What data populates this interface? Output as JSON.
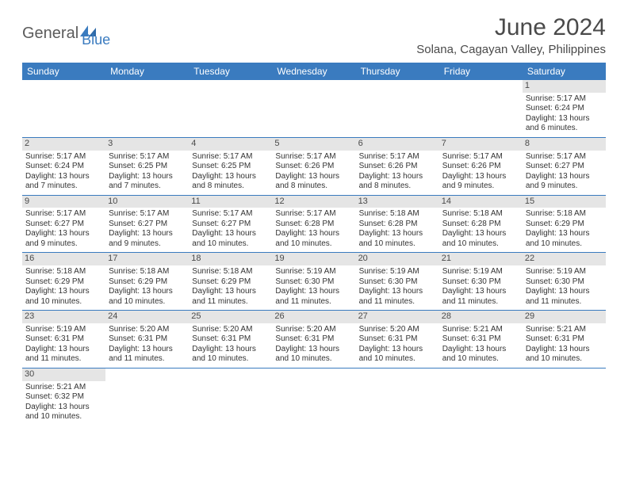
{
  "logo": {
    "general": "General",
    "blue": "Blue"
  },
  "title": "June 2024",
  "location": "Solana, Cagayan Valley, Philippines",
  "dow": [
    "Sunday",
    "Monday",
    "Tuesday",
    "Wednesday",
    "Thursday",
    "Friday",
    "Saturday"
  ],
  "colors": {
    "header_bg": "#3a7bbf",
    "daynum_bg": "#e5e5e5",
    "text": "#4a4a4a",
    "border": "#3a7bbf"
  },
  "weeks": [
    [
      {
        "n": null
      },
      {
        "n": null
      },
      {
        "n": null
      },
      {
        "n": null
      },
      {
        "n": null
      },
      {
        "n": null
      },
      {
        "n": "1",
        "sr": "Sunrise: 5:17 AM",
        "ss": "Sunset: 6:24 PM",
        "d1": "Daylight: 13 hours",
        "d2": "and 6 minutes."
      }
    ],
    [
      {
        "n": "2",
        "sr": "Sunrise: 5:17 AM",
        "ss": "Sunset: 6:24 PM",
        "d1": "Daylight: 13 hours",
        "d2": "and 7 minutes."
      },
      {
        "n": "3",
        "sr": "Sunrise: 5:17 AM",
        "ss": "Sunset: 6:25 PM",
        "d1": "Daylight: 13 hours",
        "d2": "and 7 minutes."
      },
      {
        "n": "4",
        "sr": "Sunrise: 5:17 AM",
        "ss": "Sunset: 6:25 PM",
        "d1": "Daylight: 13 hours",
        "d2": "and 8 minutes."
      },
      {
        "n": "5",
        "sr": "Sunrise: 5:17 AM",
        "ss": "Sunset: 6:26 PM",
        "d1": "Daylight: 13 hours",
        "d2": "and 8 minutes."
      },
      {
        "n": "6",
        "sr": "Sunrise: 5:17 AM",
        "ss": "Sunset: 6:26 PM",
        "d1": "Daylight: 13 hours",
        "d2": "and 8 minutes."
      },
      {
        "n": "7",
        "sr": "Sunrise: 5:17 AM",
        "ss": "Sunset: 6:26 PM",
        "d1": "Daylight: 13 hours",
        "d2": "and 9 minutes."
      },
      {
        "n": "8",
        "sr": "Sunrise: 5:17 AM",
        "ss": "Sunset: 6:27 PM",
        "d1": "Daylight: 13 hours",
        "d2": "and 9 minutes."
      }
    ],
    [
      {
        "n": "9",
        "sr": "Sunrise: 5:17 AM",
        "ss": "Sunset: 6:27 PM",
        "d1": "Daylight: 13 hours",
        "d2": "and 9 minutes."
      },
      {
        "n": "10",
        "sr": "Sunrise: 5:17 AM",
        "ss": "Sunset: 6:27 PM",
        "d1": "Daylight: 13 hours",
        "d2": "and 9 minutes."
      },
      {
        "n": "11",
        "sr": "Sunrise: 5:17 AM",
        "ss": "Sunset: 6:27 PM",
        "d1": "Daylight: 13 hours",
        "d2": "and 10 minutes."
      },
      {
        "n": "12",
        "sr": "Sunrise: 5:17 AM",
        "ss": "Sunset: 6:28 PM",
        "d1": "Daylight: 13 hours",
        "d2": "and 10 minutes."
      },
      {
        "n": "13",
        "sr": "Sunrise: 5:18 AM",
        "ss": "Sunset: 6:28 PM",
        "d1": "Daylight: 13 hours",
        "d2": "and 10 minutes."
      },
      {
        "n": "14",
        "sr": "Sunrise: 5:18 AM",
        "ss": "Sunset: 6:28 PM",
        "d1": "Daylight: 13 hours",
        "d2": "and 10 minutes."
      },
      {
        "n": "15",
        "sr": "Sunrise: 5:18 AM",
        "ss": "Sunset: 6:29 PM",
        "d1": "Daylight: 13 hours",
        "d2": "and 10 minutes."
      }
    ],
    [
      {
        "n": "16",
        "sr": "Sunrise: 5:18 AM",
        "ss": "Sunset: 6:29 PM",
        "d1": "Daylight: 13 hours",
        "d2": "and 10 minutes."
      },
      {
        "n": "17",
        "sr": "Sunrise: 5:18 AM",
        "ss": "Sunset: 6:29 PM",
        "d1": "Daylight: 13 hours",
        "d2": "and 10 minutes."
      },
      {
        "n": "18",
        "sr": "Sunrise: 5:18 AM",
        "ss": "Sunset: 6:29 PM",
        "d1": "Daylight: 13 hours",
        "d2": "and 11 minutes."
      },
      {
        "n": "19",
        "sr": "Sunrise: 5:19 AM",
        "ss": "Sunset: 6:30 PM",
        "d1": "Daylight: 13 hours",
        "d2": "and 11 minutes."
      },
      {
        "n": "20",
        "sr": "Sunrise: 5:19 AM",
        "ss": "Sunset: 6:30 PM",
        "d1": "Daylight: 13 hours",
        "d2": "and 11 minutes."
      },
      {
        "n": "21",
        "sr": "Sunrise: 5:19 AM",
        "ss": "Sunset: 6:30 PM",
        "d1": "Daylight: 13 hours",
        "d2": "and 11 minutes."
      },
      {
        "n": "22",
        "sr": "Sunrise: 5:19 AM",
        "ss": "Sunset: 6:30 PM",
        "d1": "Daylight: 13 hours",
        "d2": "and 11 minutes."
      }
    ],
    [
      {
        "n": "23",
        "sr": "Sunrise: 5:19 AM",
        "ss": "Sunset: 6:31 PM",
        "d1": "Daylight: 13 hours",
        "d2": "and 11 minutes."
      },
      {
        "n": "24",
        "sr": "Sunrise: 5:20 AM",
        "ss": "Sunset: 6:31 PM",
        "d1": "Daylight: 13 hours",
        "d2": "and 11 minutes."
      },
      {
        "n": "25",
        "sr": "Sunrise: 5:20 AM",
        "ss": "Sunset: 6:31 PM",
        "d1": "Daylight: 13 hours",
        "d2": "and 10 minutes."
      },
      {
        "n": "26",
        "sr": "Sunrise: 5:20 AM",
        "ss": "Sunset: 6:31 PM",
        "d1": "Daylight: 13 hours",
        "d2": "and 10 minutes."
      },
      {
        "n": "27",
        "sr": "Sunrise: 5:20 AM",
        "ss": "Sunset: 6:31 PM",
        "d1": "Daylight: 13 hours",
        "d2": "and 10 minutes."
      },
      {
        "n": "28",
        "sr": "Sunrise: 5:21 AM",
        "ss": "Sunset: 6:31 PM",
        "d1": "Daylight: 13 hours",
        "d2": "and 10 minutes."
      },
      {
        "n": "29",
        "sr": "Sunrise: 5:21 AM",
        "ss": "Sunset: 6:31 PM",
        "d1": "Daylight: 13 hours",
        "d2": "and 10 minutes."
      }
    ],
    [
      {
        "n": "30",
        "sr": "Sunrise: 5:21 AM",
        "ss": "Sunset: 6:32 PM",
        "d1": "Daylight: 13 hours",
        "d2": "and 10 minutes."
      },
      {
        "n": null
      },
      {
        "n": null
      },
      {
        "n": null
      },
      {
        "n": null
      },
      {
        "n": null
      },
      {
        "n": null
      }
    ]
  ]
}
